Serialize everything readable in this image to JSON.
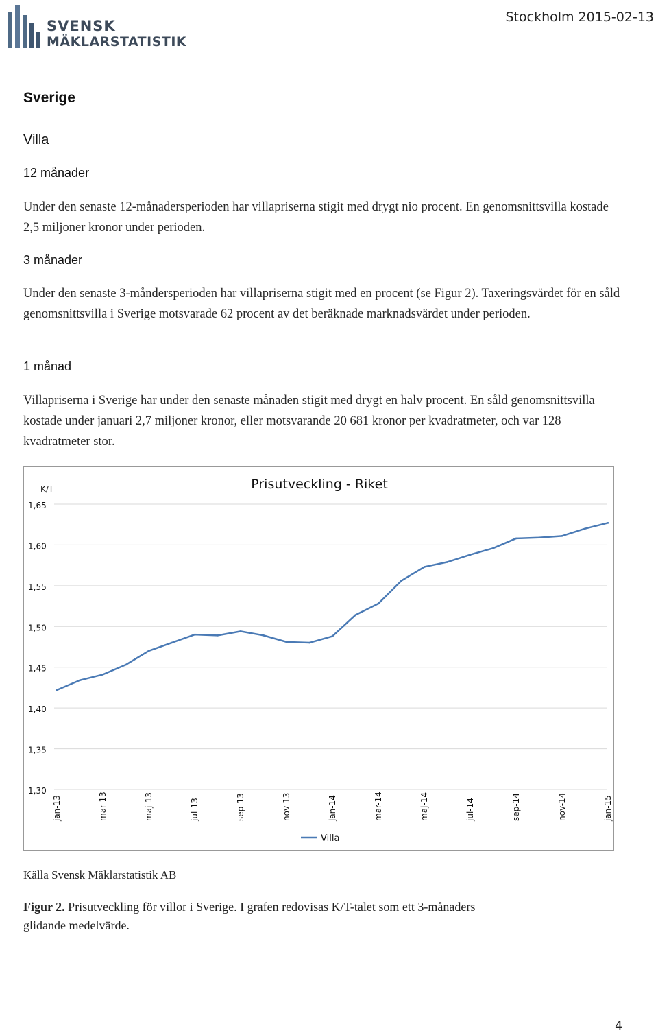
{
  "header": {
    "logo_line1": "SVENSK",
    "logo_line2": "MÄKLARSTATISTIK",
    "logo_icon": "bar-logo-icon",
    "date": "Stockholm 2015-02-13"
  },
  "section_title": "Sverige",
  "subsection_title": "Villa",
  "blocks": [
    {
      "heading": "12 månader",
      "text": "Under den senaste 12-månadersperioden har villapriserna stigit med drygt nio procent. En genomsnittsvilla kostade 2,5 miljoner kronor under perioden."
    },
    {
      "heading": "3 månader",
      "text": "Under den senaste 3-måndersperioden har villapriserna stigit med en procent (se Figur 2). Taxeringsvärdet för en såld genomsnittsvilla i Sverige motsvarade 62 procent av det beräknade marknadsvärdet under perioden."
    },
    {
      "heading": "1 månad",
      "text": "Villapriserna i Sverige har under den senaste månaden stigit med drygt en halv procent. En såld genomsnittsvilla kostade under januari 2,7 miljoner kronor, eller motsvarande 20 681 kronor per kvadratmeter, och var 128 kvadratmeter stor."
    }
  ],
  "chart_data": {
    "type": "line",
    "title": "Prisutveckling - Riket",
    "ylabel": "K/T",
    "xlabel": "",
    "ylim": [
      1.3,
      1.65
    ],
    "yticks": [
      "1,65",
      "1,60",
      "1,55",
      "1,50",
      "1,45",
      "1,40",
      "1,35",
      "1,30"
    ],
    "ytick_values": [
      1.65,
      1.6,
      1.55,
      1.5,
      1.45,
      1.4,
      1.35,
      1.3
    ],
    "xtick_labels": [
      "jan-13",
      "mar-13",
      "maj-13",
      "jul-13",
      "sep-13",
      "nov-13",
      "jan-14",
      "mar-14",
      "maj-14",
      "jul-14",
      "sep-14",
      "nov-14",
      "jan-15"
    ],
    "grid": true,
    "legend_position": "bottom",
    "series": [
      {
        "name": "Villa",
        "color": "#4a7ab5",
        "x": [
          "jan-13",
          "feb-13",
          "mar-13",
          "apr-13",
          "maj-13",
          "jun-13",
          "jul-13",
          "aug-13",
          "sep-13",
          "okt-13",
          "nov-13",
          "dec-13",
          "jan-14",
          "feb-14",
          "mar-14",
          "apr-14",
          "maj-14",
          "jun-14",
          "jul-14",
          "aug-14",
          "sep-14",
          "okt-14",
          "nov-14",
          "dec-14",
          "jan-15"
        ],
        "values": [
          1.422,
          1.434,
          1.441,
          1.453,
          1.47,
          1.48,
          1.49,
          1.489,
          1.494,
          1.489,
          1.481,
          1.48,
          1.488,
          1.514,
          1.528,
          1.556,
          1.573,
          1.579,
          1.588,
          1.596,
          1.608,
          1.609,
          1.611,
          1.62,
          1.627
        ]
      }
    ]
  },
  "source_text": "Källa Svensk Mäklarstatistik AB",
  "caption": {
    "label": "Figur 2.",
    "text": " Prisutveckling för villor i Sverige. I grafen redovisas K/T-talet som ett 3-månaders glidande medelvärde."
  },
  "page_number": "4"
}
